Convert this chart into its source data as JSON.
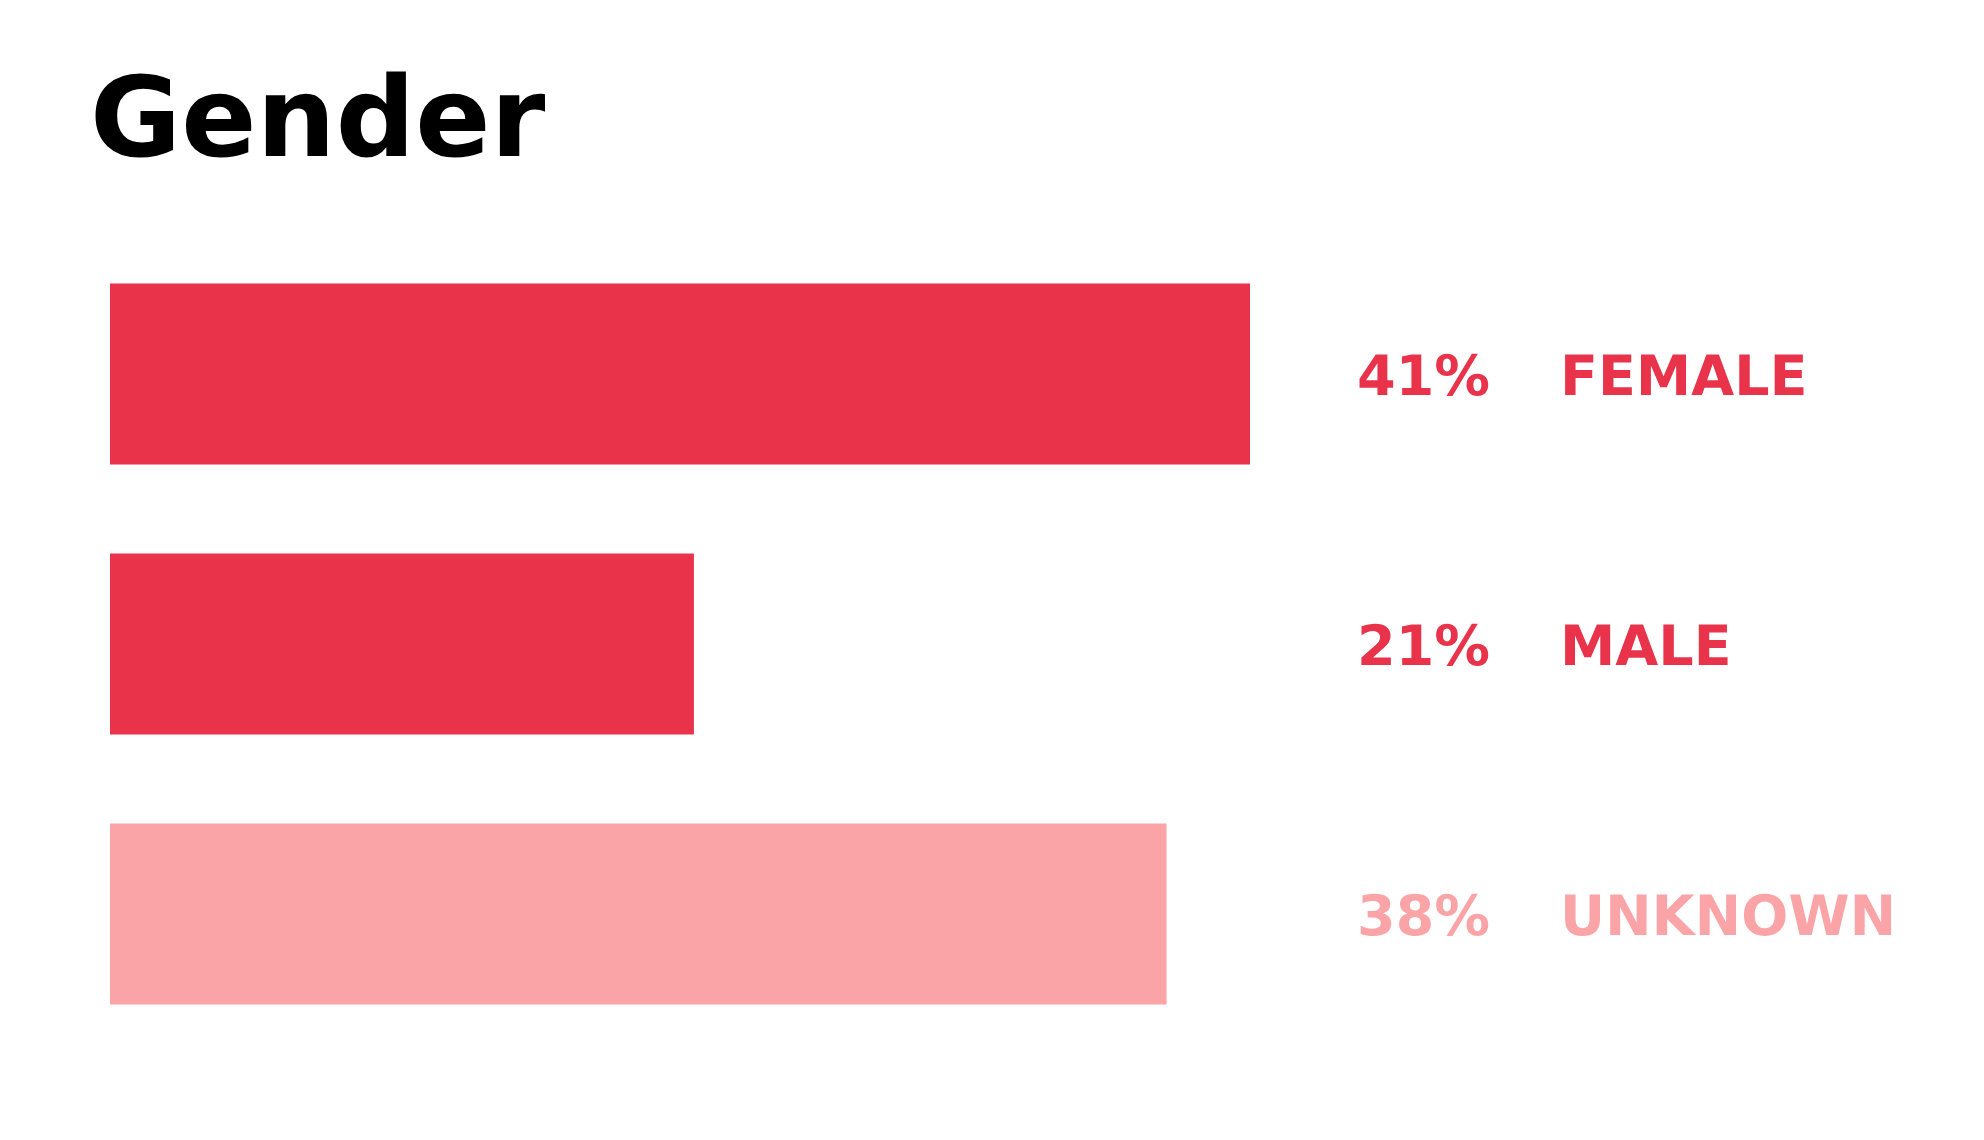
{
  "chart_data": {
    "type": "bar",
    "orientation": "horizontal",
    "title": "Gender",
    "categories": [
      "FEMALE",
      "MALE",
      "UNKNOWN"
    ],
    "values": [
      41,
      21,
      38
    ],
    "colors": [
      "#e8334a",
      "#e8334a",
      "#fba4a7"
    ],
    "value_labels": [
      "41%",
      "21%",
      "38%"
    ],
    "tick_labels": "y"
  }
}
